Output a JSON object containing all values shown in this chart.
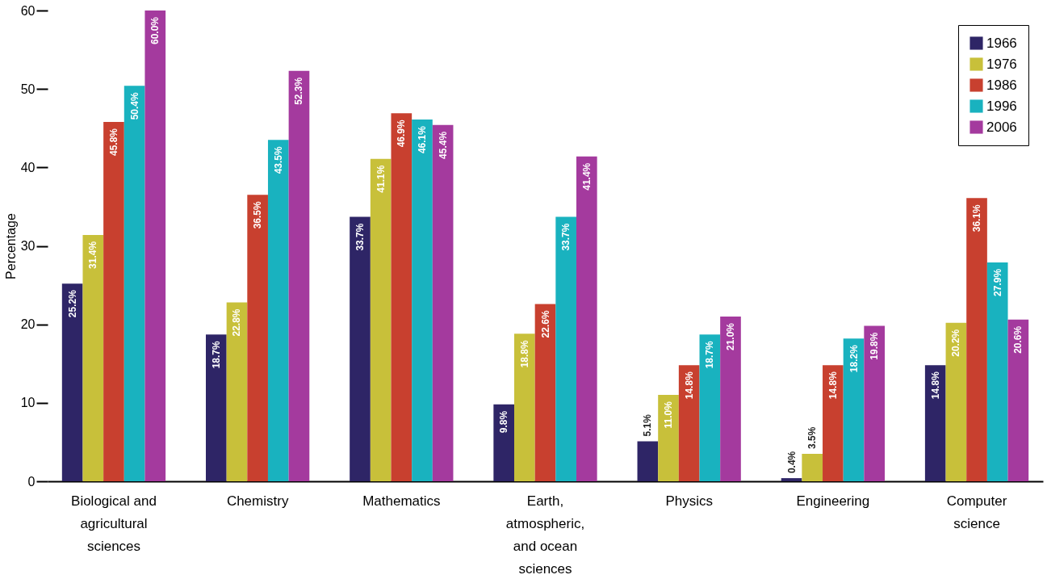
{
  "chart_data": {
    "type": "bar",
    "ylabel": "Percentage",
    "categories": [
      "Biological and\nagricultural\nsciences",
      "Chemistry",
      "Mathematics",
      "Earth,\natmospheric,\nand ocean\nsciences",
      "Physics",
      "Engineering",
      "Computer\nscience"
    ],
    "series": [
      {
        "name": "1966",
        "color": "#2e2566",
        "values": [
          25.2,
          18.7,
          33.7,
          9.8,
          5.1,
          0.4,
          14.8
        ],
        "value_labels": [
          "25.2%",
          "18.7%",
          "33.7%",
          "9.8%",
          "5.1%",
          "0.4%",
          "14.8%"
        ]
      },
      {
        "name": "1976",
        "color": "#c8c03a",
        "values": [
          31.4,
          22.8,
          41.1,
          18.8,
          11.0,
          3.5,
          20.2
        ],
        "value_labels": [
          "31.4%",
          "22.8%",
          "41.1%",
          "18.8%",
          "11.0%",
          "3.5%",
          "20.2%"
        ]
      },
      {
        "name": "1986",
        "color": "#c8402f",
        "values": [
          45.8,
          36.5,
          46.9,
          22.6,
          14.8,
          14.8,
          36.1
        ],
        "value_labels": [
          "45.8%",
          "36.5%",
          "46.9%",
          "22.6%",
          "14.8%",
          "14.8%",
          "36.1%"
        ]
      },
      {
        "name": "1996",
        "color": "#19b2bf",
        "values": [
          50.4,
          43.5,
          46.1,
          33.7,
          18.7,
          18.2,
          27.9
        ],
        "value_labels": [
          "50.4%",
          "43.5%",
          "46.1%",
          "33.7%",
          "18.7%",
          "18.2%",
          "27.9%"
        ]
      },
      {
        "name": "2006",
        "color": "#a43a9e",
        "values": [
          60.0,
          52.3,
          45.4,
          41.4,
          21.0,
          19.8,
          20.6
        ],
        "value_labels": [
          "60.0%",
          "52.3%",
          "45.4%",
          "41.4%",
          "21.0%",
          "19.8%",
          "20.6%"
        ]
      }
    ],
    "ylim": [
      0,
      60
    ],
    "yticks": [
      0,
      10,
      20,
      30,
      40,
      50,
      60
    ],
    "grid": false,
    "legend": "top right"
  }
}
